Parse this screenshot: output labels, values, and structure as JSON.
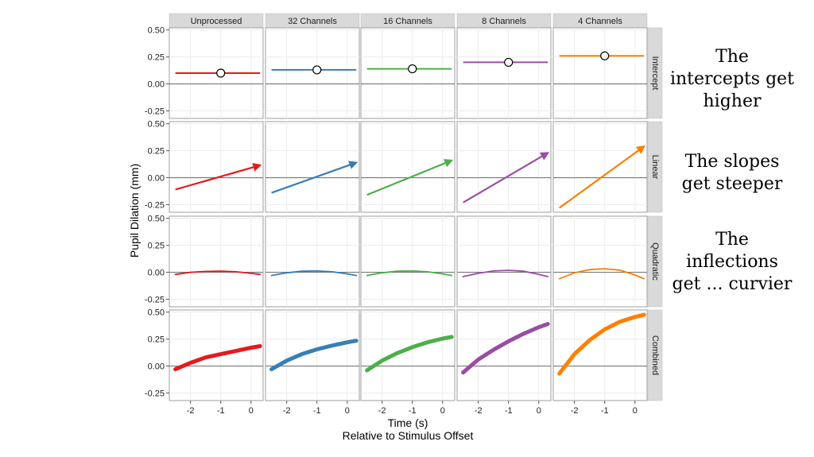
{
  "chart_data": {
    "type": "line",
    "layout": "facet-grid",
    "xlabel": "Time (s)",
    "xlabel_sub": "Relative to Stimulus Offset",
    "ylabel": "Pupil Dilation (mm)",
    "xlim": [
      -2.7,
      0.4
    ],
    "ylim": [
      -0.32,
      0.52
    ],
    "x_ticks": [
      -2,
      -1,
      0
    ],
    "x_tick_labels": [
      "-2",
      "-1",
      "0"
    ],
    "y_ticks": [
      -0.25,
      0,
      0.25,
      0.5
    ],
    "y_tick_labels": [
      "-0.25",
      "0.00",
      "0.25",
      "0.50"
    ],
    "columns": [
      {
        "label": "Unprocessed",
        "color": "#e41a1c"
      },
      {
        "label": "32 Channels",
        "color": "#377eb8"
      },
      {
        "label": "16 Channels",
        "color": "#4daf4a"
      },
      {
        "label": "8 Channels",
        "color": "#984ea3"
      },
      {
        "label": "4 Channels",
        "color": "#ff7f00"
      }
    ],
    "rows": [
      {
        "label": "Intercept",
        "kind": "point_line"
      },
      {
        "label": "Linear",
        "kind": "arrow"
      },
      {
        "label": "Quadratic",
        "kind": "curve"
      },
      {
        "label": "Combined",
        "kind": "thick_curve"
      }
    ],
    "x": [
      -2.5,
      -2.0,
      -1.5,
      -1.0,
      -0.5,
      0.0,
      0.3
    ],
    "panels": {
      "Intercept": [
        [
          0.1,
          0.1,
          0.1,
          0.1,
          0.1,
          0.1,
          0.1
        ],
        [
          0.13,
          0.13,
          0.13,
          0.13,
          0.13,
          0.13,
          0.13
        ],
        [
          0.14,
          0.14,
          0.14,
          0.14,
          0.14,
          0.14,
          0.14
        ],
        [
          0.2,
          0.2,
          0.2,
          0.2,
          0.2,
          0.2,
          0.2
        ],
        [
          0.26,
          0.26,
          0.26,
          0.26,
          0.26,
          0.26,
          0.26
        ]
      ],
      "Linear": [
        [
          -0.11,
          -0.07,
          -0.035,
          0.0,
          0.035,
          0.07,
          0.115
        ],
        [
          -0.14,
          -0.085,
          -0.04,
          0.0,
          0.045,
          0.09,
          0.14
        ],
        [
          -0.16,
          -0.1,
          -0.05,
          0.0,
          0.05,
          0.1,
          0.16
        ],
        [
          -0.23,
          -0.15,
          -0.075,
          0.0,
          0.075,
          0.15,
          0.23
        ],
        [
          -0.28,
          -0.19,
          -0.095,
          0.0,
          0.095,
          0.19,
          0.29
        ]
      ],
      "Quadratic": [
        [
          -0.02,
          0.0,
          0.008,
          0.01,
          0.005,
          -0.01,
          -0.02
        ],
        [
          -0.03,
          -0.005,
          0.01,
          0.012,
          0.005,
          -0.015,
          -0.03
        ],
        [
          -0.03,
          -0.005,
          0.01,
          0.012,
          0.005,
          -0.015,
          -0.03
        ],
        [
          -0.04,
          -0.01,
          0.012,
          0.018,
          0.01,
          -0.02,
          -0.04
        ],
        [
          -0.06,
          -0.005,
          0.025,
          0.032,
          0.02,
          -0.025,
          -0.06
        ]
      ],
      "Combined": [
        [
          -0.03,
          0.03,
          0.08,
          0.11,
          0.14,
          0.17,
          0.185
        ],
        [
          -0.03,
          0.05,
          0.11,
          0.155,
          0.19,
          0.22,
          0.235
        ],
        [
          -0.04,
          0.05,
          0.12,
          0.175,
          0.22,
          0.255,
          0.27
        ],
        [
          -0.06,
          0.06,
          0.15,
          0.23,
          0.3,
          0.36,
          0.39
        ],
        [
          -0.07,
          0.11,
          0.24,
          0.34,
          0.41,
          0.455,
          0.475
        ]
      ]
    },
    "intercept_markers": [
      0.1,
      0.13,
      0.14,
      0.2,
      0.26
    ],
    "intercept_marker_x": -1,
    "grid": true,
    "legend": "none"
  },
  "annotations": [
    {
      "line1": "The",
      "line2": "intercepts get",
      "line3": "higher"
    },
    {
      "line1": "The slopes",
      "line2": "get steeper",
      "line3": ""
    },
    {
      "line1": "The",
      "line2": "inflections",
      "line3": "get ... curvier"
    }
  ]
}
